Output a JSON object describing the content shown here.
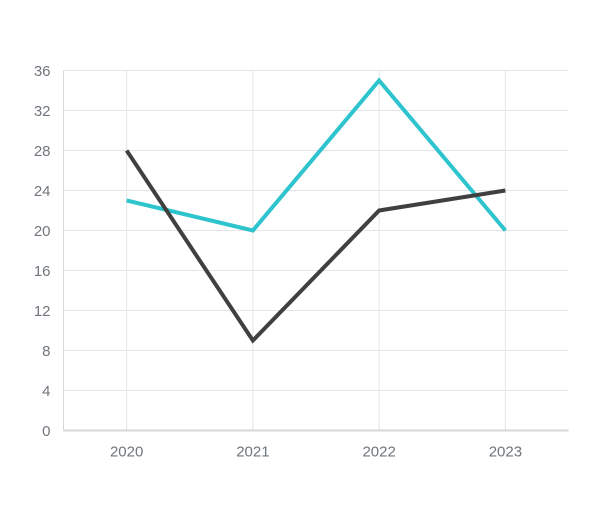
{
  "chart_data": {
    "type": "line",
    "title": "",
    "xlabel": "",
    "ylabel": "",
    "categories": [
      "2020",
      "2021",
      "2022",
      "2023"
    ],
    "series": [
      {
        "name": "cyan-line",
        "color": "#2EC4CE",
        "values": [
          23,
          20,
          35,
          20
        ]
      },
      {
        "name": "dark-line",
        "color": "#404040",
        "values": [
          28,
          9,
          22,
          24
        ]
      }
    ],
    "y_ticks": [
      0,
      4,
      8,
      12,
      16,
      20,
      24,
      28,
      32,
      36
    ],
    "ylim": [
      0,
      36
    ],
    "grid": true,
    "legend_position": "none",
    "colors": {
      "grid": "#e4e4e4",
      "axis": "#d7d7d7",
      "tick_label": "#70767d",
      "background": "#ffffff"
    }
  }
}
